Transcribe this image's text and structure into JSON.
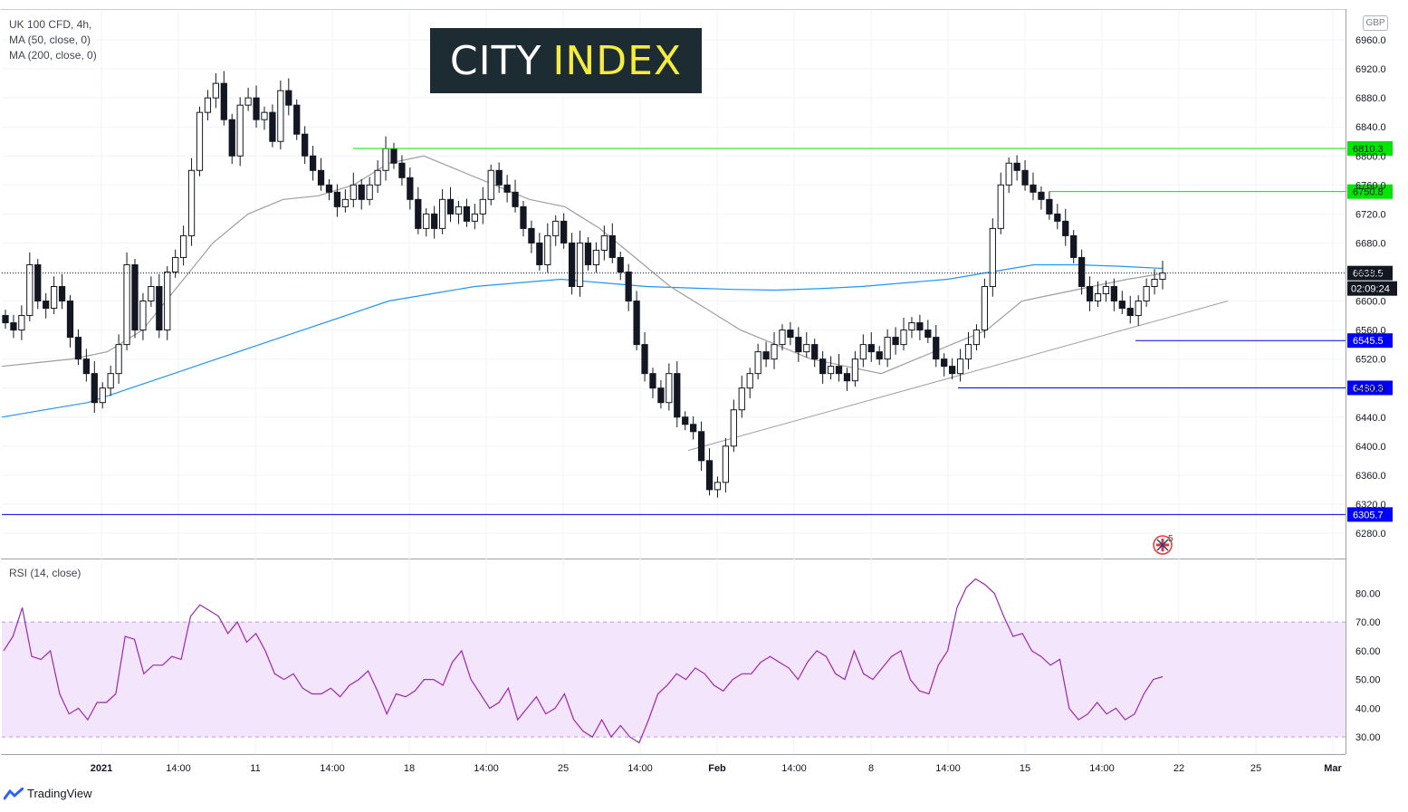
{
  "legend": {
    "symbol": "UK 100 CFD, 4h,",
    "ma50": "MA (50, close, 0)",
    "ma200": "MA (200, close, 0)"
  },
  "rsi_legend": "RSI (14, close)",
  "logo": {
    "word1": "CITY",
    "word2": "INDEX"
  },
  "currency": "GBP",
  "brand": "TradingView",
  "countdown": "02:09:24",
  "colors": {
    "bull": "#26a69a",
    "candle": "#131722",
    "ma50": "#9e9e9e",
    "ma200": "#2196f3",
    "resistance": "#00e600",
    "support": "#0000ff",
    "rsi_line": "#9c27b0",
    "rsi_band": "#f3e5fb"
  },
  "chart_data": [
    {
      "type": "candlestick",
      "title": "UK 100 CFD, 4h",
      "ylim": [
        6260,
        6980
      ],
      "y_ticks": [
        6280,
        6320,
        6360,
        6400,
        6440,
        6480,
        6520,
        6560,
        6600,
        6640,
        6680,
        6720,
        6760,
        6800,
        6840,
        6880,
        6920,
        6960
      ],
      "x_ticks": [
        "2021",
        "14:00",
        "11",
        "14:00",
        "18",
        "14:00",
        "25",
        "14:00",
        "Feb",
        "14:00",
        "8",
        "14:00",
        "15",
        "14:00",
        "22",
        "25",
        "Mar"
      ],
      "last_price": 6638.5,
      "price_labels": [
        {
          "label": "6810.3",
          "value": 6810.3,
          "kind": "resistance"
        },
        {
          "label": "6750.8",
          "value": 6750.8,
          "kind": "resistance"
        },
        {
          "label": "6638.5",
          "value": 6638.5,
          "kind": "last"
        },
        {
          "label": "6545.5",
          "value": 6545.5,
          "kind": "support"
        },
        {
          "label": "6480.3",
          "value": 6480.3,
          "kind": "support"
        },
        {
          "label": "6305.7",
          "value": 6305.7,
          "kind": "support"
        }
      ],
      "trend_line": {
        "from_value": 6394,
        "to_value": 6600
      },
      "close_path": [
        6570,
        6560,
        6580,
        6650,
        6600,
        6590,
        6620,
        6600,
        6550,
        6520,
        6500,
        6460,
        6480,
        6500,
        6540,
        6650,
        6560,
        6600,
        6620,
        6560,
        6640,
        6660,
        6690,
        6780,
        6860,
        6880,
        6900,
        6850,
        6800,
        6870,
        6880,
        6850,
        6860,
        6820,
        6890,
        6870,
        6830,
        6800,
        6780,
        6760,
        6750,
        6730,
        6740,
        6760,
        6740,
        6760,
        6780,
        6810,
        6790,
        6770,
        6740,
        6700,
        6720,
        6700,
        6740,
        6720,
        6730,
        6710,
        6720,
        6740,
        6780,
        6760,
        6750,
        6730,
        6700,
        6680,
        6650,
        6690,
        6710,
        6680,
        6620,
        6680,
        6650,
        6670,
        6690,
        6660,
        6640,
        6600,
        6540,
        6500,
        6480,
        6460,
        6500,
        6440,
        6430,
        6420,
        6380,
        6340,
        6350,
        6400,
        6450,
        6480,
        6500,
        6530,
        6520,
        6540,
        6560,
        6550,
        6530,
        6540,
        6520,
        6500,
        6510,
        6500,
        6490,
        6520,
        6540,
        6530,
        6520,
        6550,
        6540,
        6560,
        6570,
        6560,
        6550,
        6520,
        6510,
        6500,
        6520,
        6540,
        6560,
        6620,
        6700,
        6760,
        6790,
        6780,
        6760,
        6750,
        6740,
        6720,
        6710,
        6690,
        6660,
        6620,
        6600,
        6610,
        6620,
        6600,
        6590,
        6580,
        6600,
        6620,
        6630,
        6638.5
      ],
      "ma50_path": [
        6510,
        6515,
        6520,
        6530,
        6560,
        6620,
        6680,
        6720,
        6740,
        6745,
        6760,
        6790,
        6800,
        6780,
        6760,
        6740,
        6730,
        6700,
        6660,
        6620,
        6590,
        6560,
        6540,
        6520,
        6510,
        6500,
        6520,
        6540,
        6560,
        6600,
        6610,
        6620,
        6630,
        6638
      ],
      "ma200_path": [
        6440,
        6450,
        6460,
        6480,
        6500,
        6520,
        6540,
        6560,
        6580,
        6600,
        6610,
        6620,
        6625,
        6630,
        6625,
        6620,
        6618,
        6616,
        6615,
        6617,
        6620,
        6625,
        6630,
        6640,
        6650,
        6650,
        6648,
        6645
      ]
    },
    {
      "type": "line",
      "title": "RSI (14, close)",
      "ylim": [
        25,
        88
      ],
      "y_ticks": [
        30,
        40,
        50,
        60,
        70,
        80
      ],
      "band": [
        30,
        70
      ],
      "values": [
        60,
        65,
        75,
        58,
        57,
        60,
        45,
        38,
        40,
        36,
        42,
        42,
        45,
        65,
        64,
        52,
        55,
        55,
        58,
        57,
        72,
        76,
        74,
        72,
        66,
        70,
        63,
        66,
        60,
        52,
        50,
        52,
        47,
        45,
        45,
        47,
        44,
        48,
        50,
        53,
        46,
        38,
        45,
        44,
        46,
        50,
        50,
        48,
        56,
        60,
        50,
        45,
        40,
        42,
        47,
        36,
        40,
        44,
        38,
        40,
        45,
        36,
        32,
        30,
        36,
        30,
        34,
        30,
        28,
        36,
        45,
        48,
        52,
        50,
        54,
        52,
        48,
        46,
        50,
        52,
        52,
        56,
        58,
        56,
        54,
        50,
        56,
        60,
        58,
        52,
        50,
        60,
        52,
        50,
        54,
        58,
        60,
        50,
        46,
        45,
        55,
        60,
        75,
        82,
        85,
        83,
        80,
        72,
        65,
        66,
        60,
        58,
        55,
        57,
        40,
        36,
        38,
        42,
        38,
        40,
        36,
        38,
        45,
        50,
        51
      ]
    }
  ]
}
